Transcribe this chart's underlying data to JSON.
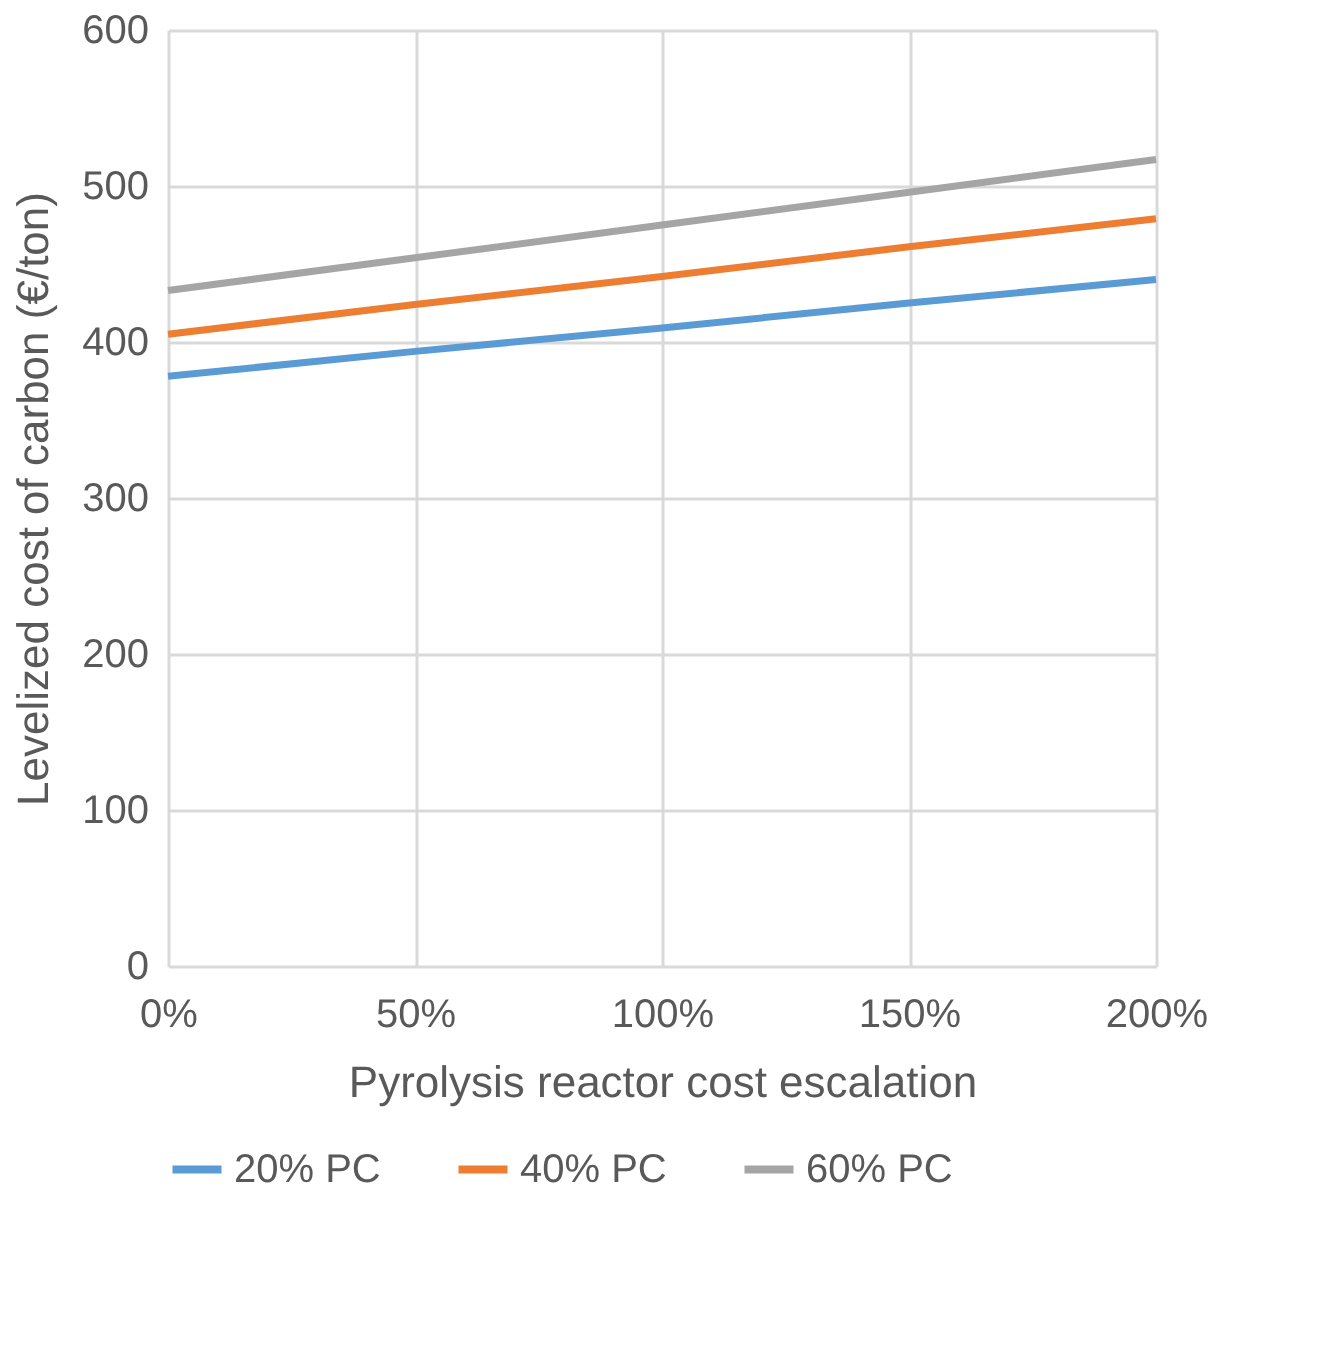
{
  "chart_data": {
    "type": "line",
    "xlabel": "Pyrolysis reactor cost escalation",
    "ylabel": "Levelized cost of carbon (€/ton)",
    "x": [
      0,
      50,
      100,
      150,
      200
    ],
    "series": [
      {
        "name": "20% PC",
        "color": "#5b9bd5",
        "values": [
          378,
          394,
          409,
          425,
          440
        ]
      },
      {
        "name": "40% PC",
        "color": "#ed7d31",
        "values": [
          405,
          424,
          442,
          461,
          479
        ]
      },
      {
        "name": "60% PC",
        "color": "#a5a5a5",
        "values": [
          433,
          454,
          475,
          496,
          517
        ]
      }
    ],
    "xlim": [
      0,
      200
    ],
    "xticks": [
      {
        "value": 0,
        "label": "0%"
      },
      {
        "value": 50,
        "label": "50%"
      },
      {
        "value": 100,
        "label": "100%"
      },
      {
        "value": 150,
        "label": "150%"
      },
      {
        "value": 200,
        "label": "200%"
      }
    ],
    "ylim": [
      0,
      600
    ],
    "yticks": [
      0,
      100,
      200,
      300,
      400,
      500,
      600
    ],
    "grid": true,
    "legend": "bottom",
    "marker": "none",
    "line_style": "solid"
  }
}
